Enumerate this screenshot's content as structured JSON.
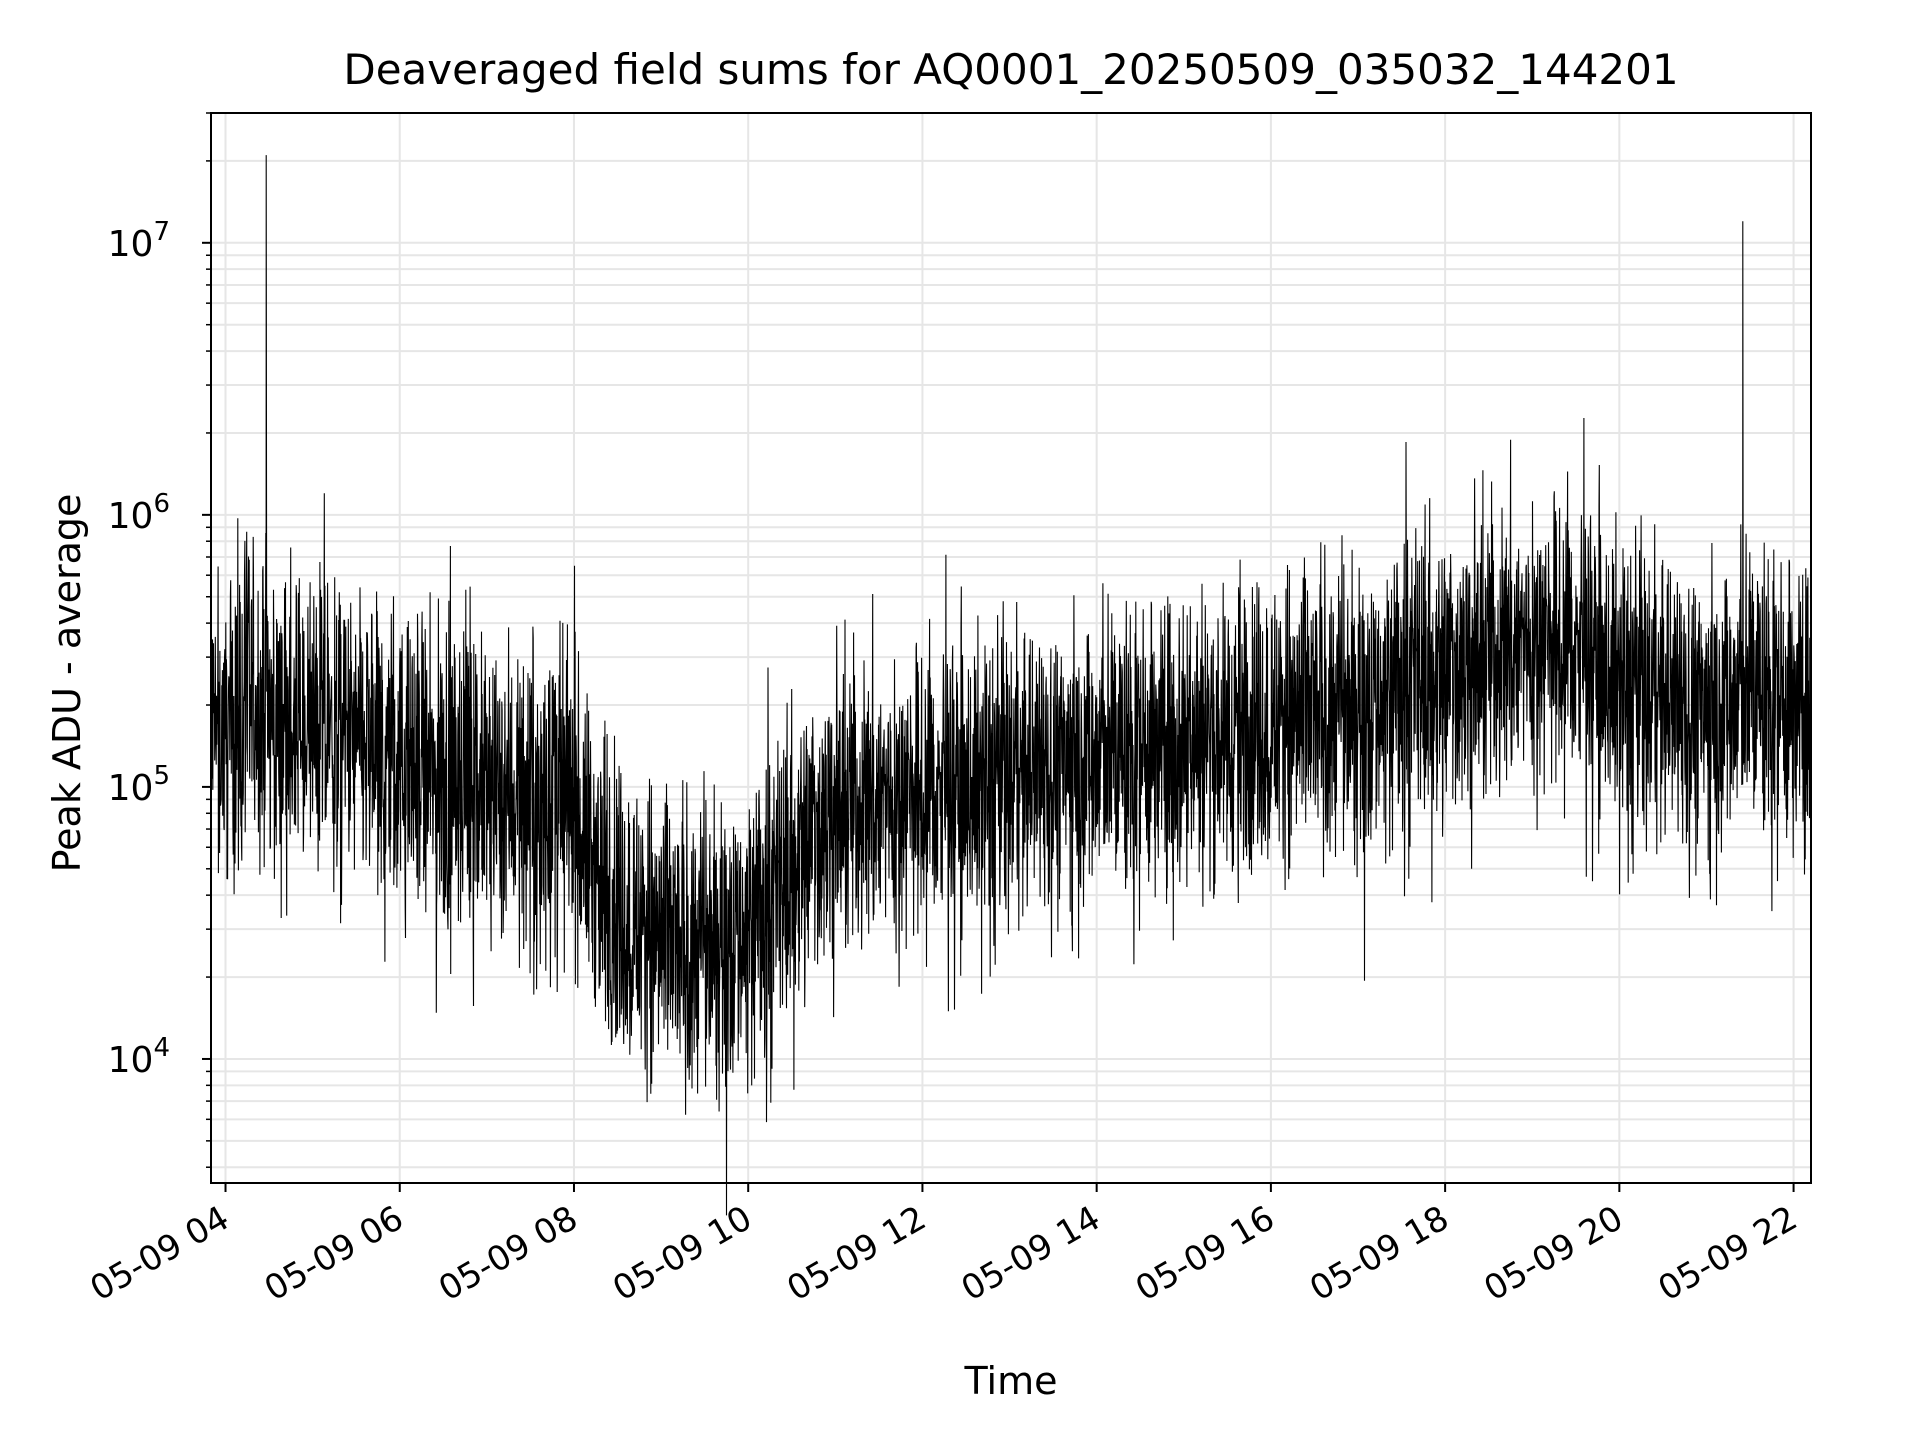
{
  "chart_data": {
    "type": "line",
    "title": "Deaveraged field sums for AQ0001_20250509_035032_144201",
    "xlabel": "Time",
    "ylabel": "Peak ADU - average",
    "yscale": "log",
    "grid": true,
    "legend": "none",
    "xlim": [
      "2025-05-09 03:50",
      "2025-05-09 22:12"
    ],
    "ylim": [
      3500,
      30000000
    ],
    "x_ticks": [
      {
        "t": "2025-05-09 04:00",
        "label": "05-09 04"
      },
      {
        "t": "2025-05-09 06:00",
        "label": "05-09 06"
      },
      {
        "t": "2025-05-09 08:00",
        "label": "05-09 08"
      },
      {
        "t": "2025-05-09 10:00",
        "label": "05-09 10"
      },
      {
        "t": "2025-05-09 12:00",
        "label": "05-09 12"
      },
      {
        "t": "2025-05-09 14:00",
        "label": "05-09 14"
      },
      {
        "t": "2025-05-09 16:00",
        "label": "05-09 16"
      },
      {
        "t": "2025-05-09 18:00",
        "label": "05-09 18"
      },
      {
        "t": "2025-05-09 20:00",
        "label": "05-09 20"
      },
      {
        "t": "2025-05-09 22:00",
        "label": "05-09 22"
      }
    ],
    "y_ticks": [
      {
        "value": 10000,
        "mantissa": "10",
        "exponent": "4"
      },
      {
        "value": 100000,
        "mantissa": "10",
        "exponent": "5"
      },
      {
        "value": 1000000,
        "mantissa": "10",
        "exponent": "6"
      },
      {
        "value": 10000000,
        "mantissa": "10",
        "exponent": "7"
      }
    ],
    "series": [
      {
        "color": "#000000",
        "points": [
          [
            "2025-05-09 03:50",
            150000
          ],
          [
            "2025-05-09 04:10",
            180000
          ],
          [
            "2025-05-09 04:20",
            200000
          ],
          [
            "2025-05-09 04:28",
            21000000
          ],
          [
            "2025-05-09 04:36",
            170000
          ],
          [
            "2025-05-09 05:00",
            160000
          ],
          [
            "2025-05-09 05:30",
            140000
          ],
          [
            "2025-05-09 06:00",
            115000
          ],
          [
            "2025-05-09 06:30",
            105000
          ],
          [
            "2025-05-09 07:00",
            95000
          ],
          [
            "2025-05-09 07:30",
            95000
          ],
          [
            "2025-05-09 08:00",
            85000
          ],
          [
            "2025-05-09 08:20",
            40000
          ],
          [
            "2025-05-09 08:45",
            30000
          ],
          [
            "2025-05-09 09:15",
            25000
          ],
          [
            "2025-05-09 09:45",
            28000
          ],
          [
            "2025-05-09 10:15",
            35000
          ],
          [
            "2025-05-09 10:40",
            65000
          ],
          [
            "2025-05-09 11:00",
            85000
          ],
          [
            "2025-05-09 11:30",
            90000
          ],
          [
            "2025-05-09 12:00",
            95000
          ],
          [
            "2025-05-09 12:30",
            100000
          ],
          [
            "2025-05-09 13:00",
            110000
          ],
          [
            "2025-05-09 13:30",
            120000
          ],
          [
            "2025-05-09 14:00",
            130000
          ],
          [
            "2025-05-09 14:30",
            140000
          ],
          [
            "2025-05-09 15:00",
            150000
          ],
          [
            "2025-05-09 15:30",
            160000
          ],
          [
            "2025-05-09 16:00",
            170000
          ],
          [
            "2025-05-09 16:30",
            185000
          ],
          [
            "2025-05-09 17:00",
            200000
          ],
          [
            "2025-05-09 17:30",
            230000
          ],
          [
            "2025-05-09 18:00",
            270000
          ],
          [
            "2025-05-09 18:30",
            310000
          ],
          [
            "2025-05-09 19:00",
            350000
          ],
          [
            "2025-05-09 19:30",
            330000
          ],
          [
            "2025-05-09 20:00",
            240000
          ],
          [
            "2025-05-09 20:30",
            210000
          ],
          [
            "2025-05-09 21:00",
            190000
          ],
          [
            "2025-05-09 21:25",
            12000000
          ],
          [
            "2025-05-09 21:35",
            230000
          ],
          [
            "2025-05-09 22:00",
            200000
          ],
          [
            "2025-05-09 22:12",
            180000
          ]
        ]
      }
    ]
  }
}
